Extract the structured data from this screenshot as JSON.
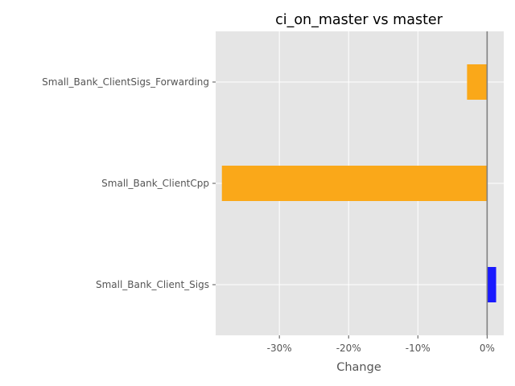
{
  "chart_data": {
    "type": "bar",
    "orientation": "horizontal",
    "title": "ci_on_master vs master",
    "xlabel": "Change",
    "ylabel": "",
    "categories": [
      "Small_Bank_ClientSigs_Forwarding",
      "Small_Bank_ClientCpp",
      "Small_Bank_Client_Sigs"
    ],
    "values": [
      -2.9,
      -38.3,
      1.3
    ],
    "unit": "%",
    "bar_colors": [
      "#FAA819",
      "#FAA819",
      "#1A1AFF"
    ],
    "xlim": [
      -39.2,
      2.4
    ],
    "xticks": [
      -30,
      -20,
      -10,
      0
    ],
    "xtick_labels": [
      "-30%",
      "-20%",
      "-10%",
      "0%"
    ],
    "zero_line_color": "#808080",
    "background": "#E5E5E5",
    "grid": true,
    "grid_color": "#FFFFFF"
  }
}
